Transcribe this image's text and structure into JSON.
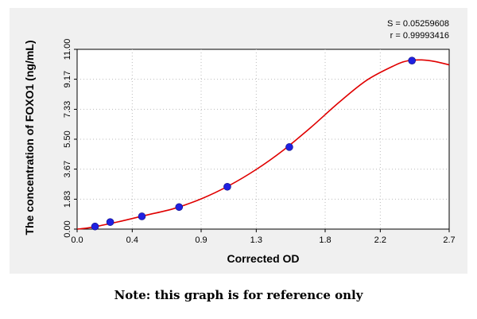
{
  "chart_data": {
    "type": "scatter",
    "title": "",
    "xlabel": "Corrected OD",
    "ylabel": "The concentration of FOXO1 (ng/mL)",
    "xlim": [
      0.0,
      2.7
    ],
    "ylim": [
      0.0,
      11.0
    ],
    "x_ticks": [
      "0.0",
      "0.4",
      "0.9",
      "1.3",
      "1.8",
      "2.2",
      "2.7"
    ],
    "y_ticks": [
      "0.00",
      "1.83",
      "3.67",
      "5.50",
      "7.33",
      "9.17",
      "11.00"
    ],
    "grid": "dotted",
    "stats": [
      "S = 0.05259608",
      "r = 0.99993416"
    ],
    "series": [
      {
        "kind": "points",
        "color": "#2020e0",
        "x": [
          0.13,
          0.24,
          0.47,
          0.74,
          1.09,
          1.54,
          2.43
        ],
        "y": [
          0.16,
          0.43,
          0.78,
          1.35,
          2.59,
          5.02,
          10.31
        ]
      },
      {
        "kind": "fit-curve",
        "color": "#e00000",
        "x": [
          0.0,
          0.1,
          0.3,
          0.5,
          0.7,
          0.9,
          1.1,
          1.3,
          1.5,
          1.7,
          1.9,
          2.1,
          2.3,
          2.4,
          2.5,
          2.6,
          2.7
        ],
        "y": [
          0.0,
          0.1,
          0.45,
          0.85,
          1.25,
          1.85,
          2.65,
          3.65,
          4.85,
          6.25,
          7.75,
          9.1,
          10.0,
          10.3,
          10.35,
          10.25,
          10.05
        ]
      }
    ]
  },
  "note": "Note: this graph is for reference only"
}
